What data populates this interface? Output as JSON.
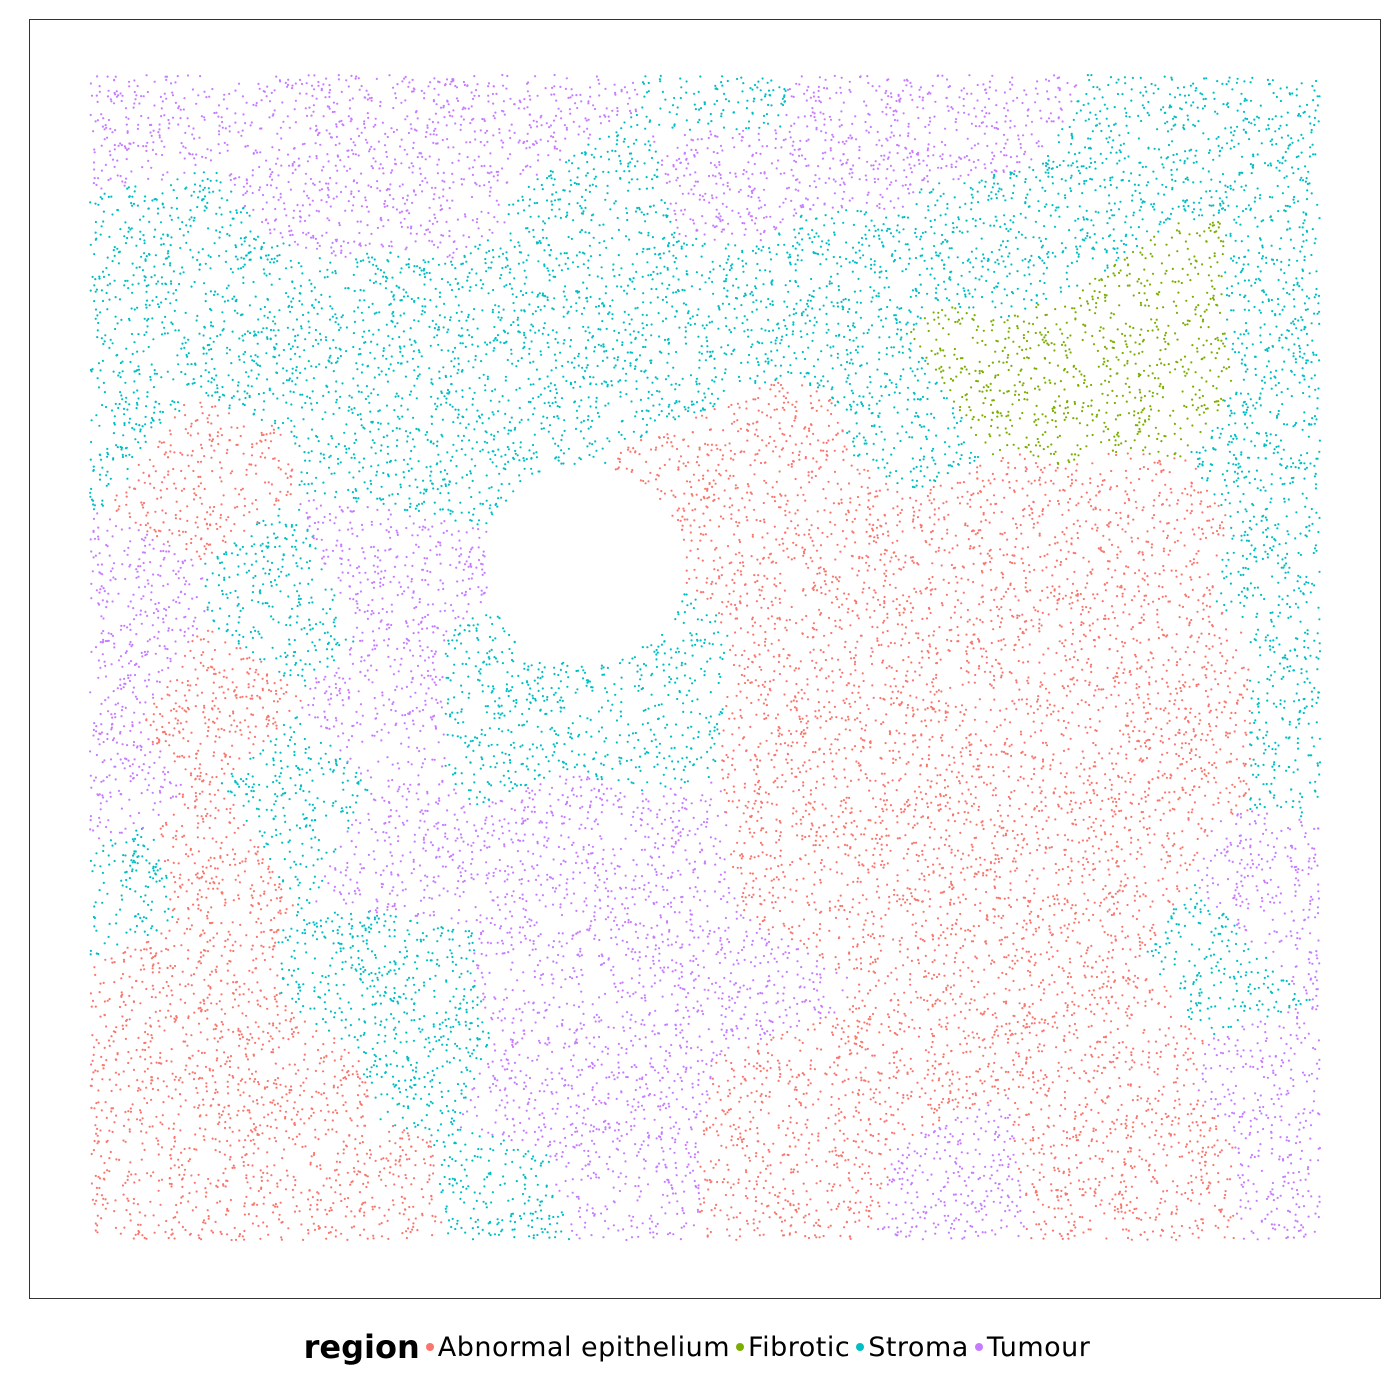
{
  "chart_data": {
    "type": "scatter",
    "title": "",
    "xlabel": "",
    "ylabel": "",
    "grid": false,
    "axes_shown": false,
    "legend_position": "bottom",
    "legend_title": "region",
    "series": [
      {
        "name": "Abnormal epithelium",
        "color": "#F8766D"
      },
      {
        "name": "Fibrotic",
        "color": "#7CAE00"
      },
      {
        "name": "Stroma",
        "color": "#00BFC4"
      },
      {
        "name": "Tumour",
        "color": "#C77CFF"
      }
    ]
  }
}
